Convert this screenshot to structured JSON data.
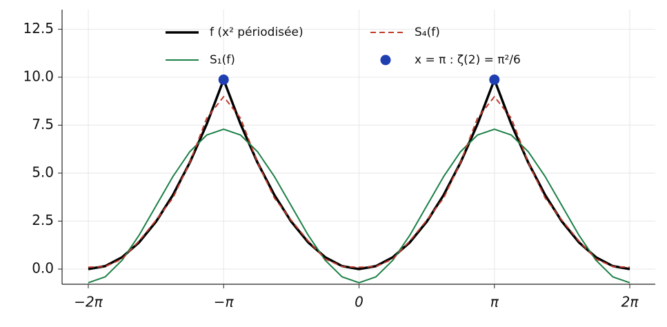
{
  "chart_data": {
    "type": "line",
    "x": [
      -6.283,
      -5.89,
      -5.498,
      -5.105,
      -4.712,
      -4.32,
      -3.927,
      -3.534,
      -3.142,
      -2.749,
      -2.356,
      -1.963,
      -1.571,
      -1.178,
      -0.785,
      -0.393,
      0,
      0.393,
      0.785,
      1.178,
      1.571,
      1.963,
      2.356,
      2.749,
      3.142,
      3.534,
      3.927,
      4.32,
      4.712,
      5.105,
      5.498,
      5.89,
      6.283
    ],
    "series": [
      {
        "name": "f (x² périodisée)",
        "color": "#000000",
        "linestyle": "solid",
        "linewidth": 3.5,
        "values": [
          0,
          0.154,
          0.617,
          1.388,
          2.467,
          3.855,
          5.551,
          7.556,
          9.87,
          7.556,
          5.551,
          3.855,
          2.467,
          1.388,
          0.617,
          0.154,
          0,
          0.154,
          0.617,
          1.388,
          2.467,
          3.855,
          5.551,
          7.556,
          9.87,
          7.556,
          5.551,
          3.855,
          2.467,
          1.388,
          0.617,
          0.154,
          0
        ]
      },
      {
        "name": "S₁(f)",
        "color": "#1a7f45",
        "linestyle": "solid",
        "linewidth": 2,
        "values": [
          -0.71,
          -0.406,
          0.461,
          1.759,
          3.29,
          4.821,
          6.118,
          6.986,
          7.29,
          6.986,
          6.118,
          4.821,
          3.29,
          1.759,
          0.461,
          -0.406,
          -0.71,
          -0.406,
          0.461,
          1.759,
          3.29,
          4.821,
          6.118,
          6.986,
          7.29,
          6.986,
          6.118,
          4.821,
          3.29,
          1.759,
          0.461,
          -0.406,
          -0.71
        ]
      },
      {
        "name": "S₄(f)",
        "color": "#c0392b",
        "linestyle": "dashed",
        "linewidth": 2,
        "values": [
          0.096,
          0.131,
          0.526,
          1.463,
          2.54,
          3.703,
          5.554,
          7.863,
          8.984,
          7.863,
          5.554,
          3.703,
          2.54,
          1.463,
          0.526,
          0.131,
          0.096,
          0.131,
          0.526,
          1.463,
          2.54,
          3.703,
          5.554,
          7.863,
          8.984,
          7.863,
          5.554,
          3.703,
          2.54,
          1.463,
          0.526,
          0.131,
          0.096
        ]
      },
      {
        "name": "x = π : ζ(2) = π²/6",
        "color": "#1f3fb0",
        "linestyle": "none",
        "marker": "o",
        "x": [
          -3.142,
          3.142
        ],
        "values": [
          9.87,
          9.87
        ]
      }
    ],
    "xlim": [
      -6.891,
      6.875
    ],
    "ylim": [
      -0.79,
      13.52
    ],
    "xticks": [
      {
        "value": -6.283,
        "label": "−2π"
      },
      {
        "value": -3.142,
        "label": "−π"
      },
      0,
      {
        "value": 3.142,
        "label": "π"
      },
      {
        "value": 6.283,
        "label": "2π"
      }
    ],
    "yticks": [
      {
        "value": 0,
        "label": "0.0"
      },
      {
        "value": 2.5,
        "label": "2.5"
      },
      {
        "value": 5,
        "label": "5.0"
      },
      {
        "value": 7.5,
        "label": "7.5"
      },
      {
        "value": 10,
        "label": "10.0"
      },
      {
        "value": 12.5,
        "label": "12.5"
      }
    ],
    "grid": true,
    "legend": "upper center"
  }
}
